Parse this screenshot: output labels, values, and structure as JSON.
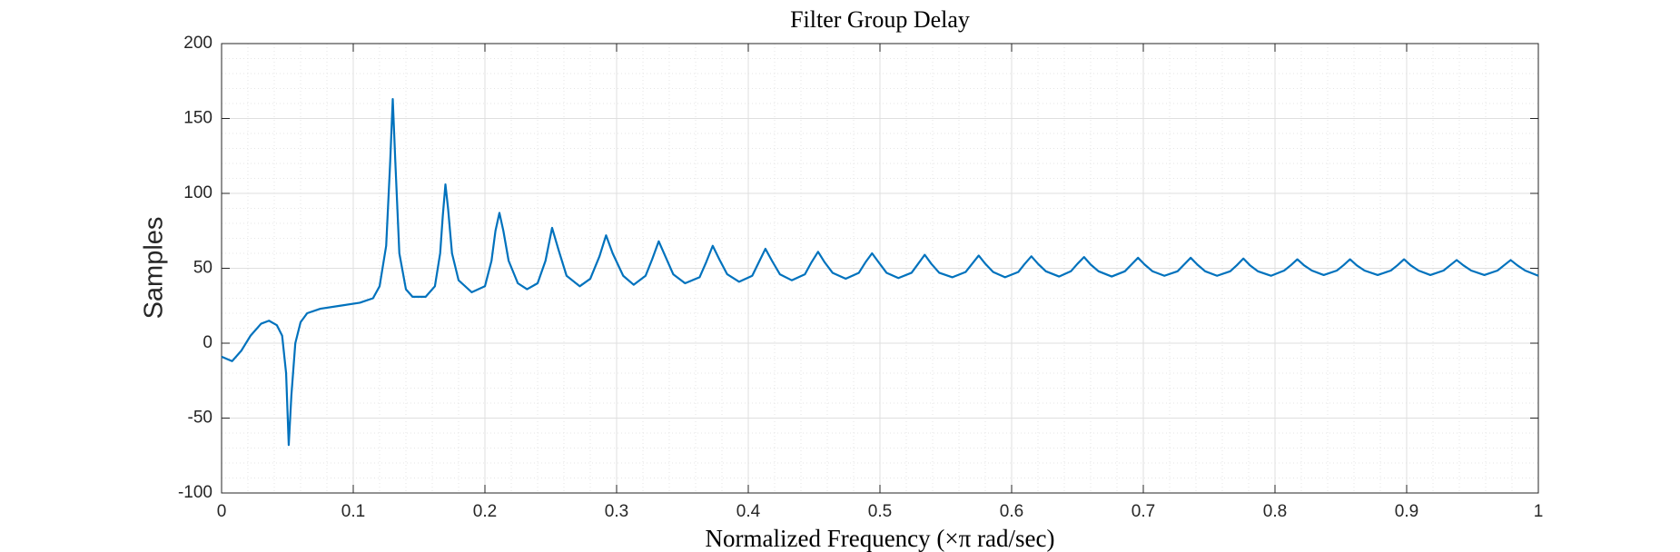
{
  "chart_data": {
    "type": "line",
    "title": "Filter Group Delay",
    "x_label": "Normalized Frequency (×π rad/sec)",
    "y_label": "Samples",
    "xlim": [
      0,
      1
    ],
    "ylim": [
      -100,
      200
    ],
    "xticks": [
      0,
      0.1,
      0.2,
      0.3,
      0.4,
      0.5,
      0.6,
      0.7,
      0.8,
      0.9,
      1
    ],
    "yticks": [
      -100,
      -50,
      0,
      50,
      100,
      150,
      200
    ],
    "grid": true,
    "minor_grid": true,
    "series": [
      {
        "color": "#0072bd",
        "x": [
          0,
          0.008,
          0.015,
          0.022,
          0.03,
          0.036,
          0.042,
          0.046,
          0.049,
          0.051,
          0.053,
          0.056,
          0.06,
          0.065,
          0.075,
          0.09,
          0.105,
          0.115,
          0.12,
          0.125,
          0.128,
          0.13,
          0.132,
          0.135,
          0.14,
          0.145,
          0.155,
          0.162,
          0.166,
          0.168,
          0.17,
          0.172,
          0.175,
          0.18,
          0.19,
          0.2,
          0.205,
          0.208,
          0.211,
          0.214,
          0.218,
          0.225,
          0.232,
          0.24,
          0.246,
          0.251,
          0.256,
          0.262,
          0.272,
          0.28,
          0.287,
          0.292,
          0.297,
          0.305,
          0.313,
          0.322,
          0.327,
          0.332,
          0.337,
          0.343,
          0.352,
          0.363,
          0.368,
          0.373,
          0.378,
          0.384,
          0.393,
          0.403,
          0.408,
          0.413,
          0.418,
          0.424,
          0.433,
          0.443,
          0.448,
          0.453,
          0.458,
          0.464,
          0.474,
          0.484,
          0.489,
          0.494,
          0.499,
          0.505,
          0.514,
          0.524,
          0.529,
          0.534,
          0.539,
          0.545,
          0.555,
          0.565,
          0.57,
          0.575,
          0.58,
          0.586,
          0.595,
          0.605,
          0.61,
          0.615,
          0.62,
          0.626,
          0.636,
          0.645,
          0.65,
          0.655,
          0.66,
          0.666,
          0.676,
          0.686,
          0.691,
          0.696,
          0.701,
          0.707,
          0.716,
          0.726,
          0.731,
          0.736,
          0.741,
          0.747,
          0.756,
          0.766,
          0.771,
          0.776,
          0.781,
          0.787,
          0.797,
          0.807,
          0.812,
          0.817,
          0.822,
          0.828,
          0.837,
          0.847,
          0.852,
          0.857,
          0.862,
          0.868,
          0.878,
          0.888,
          0.893,
          0.898,
          0.903,
          0.909,
          0.918,
          0.928,
          0.933,
          0.938,
          0.943,
          0.949,
          0.959,
          0.969,
          0.974,
          0.979,
          0.984,
          0.99,
          1
        ],
        "values": [
          -9,
          -12,
          -5,
          5,
          13,
          15,
          12,
          5,
          -20,
          -68,
          -35,
          0,
          14,
          20,
          23,
          25,
          27,
          30,
          38,
          65,
          120,
          163,
          120,
          60,
          36,
          31,
          31,
          38,
          60,
          85,
          106,
          90,
          60,
          42,
          34,
          38,
          55,
          75,
          87,
          75,
          55,
          40,
          36,
          40,
          55,
          77,
          62,
          45,
          38,
          43,
          58,
          72,
          60,
          45,
          39,
          45,
          56,
          68,
          58,
          46,
          40,
          44,
          54,
          65,
          56,
          46,
          41,
          45,
          54,
          63,
          55,
          46,
          42,
          46,
          54,
          61,
          54,
          47,
          43,
          47,
          54,
          60,
          54,
          47,
          43.5,
          47,
          53,
          59,
          53,
          47,
          44,
          47.5,
          53,
          58.5,
          53,
          47.5,
          44,
          47.5,
          53,
          58,
          53,
          48,
          44.5,
          48,
          53,
          57.5,
          52.5,
          48,
          44.5,
          48,
          52.5,
          57,
          52.5,
          48,
          45,
          48,
          52.5,
          57,
          52.5,
          48,
          45,
          48,
          52,
          56.5,
          52,
          48,
          45,
          48.5,
          52,
          56,
          52,
          48.5,
          45.5,
          48.5,
          52,
          56,
          52,
          48.5,
          45.5,
          48.5,
          52,
          56,
          52,
          48.5,
          45.5,
          48.5,
          52,
          55.5,
          52,
          48.5,
          45.5,
          48.5,
          52,
          55.5,
          52,
          48.5,
          45
        ]
      }
    ]
  }
}
